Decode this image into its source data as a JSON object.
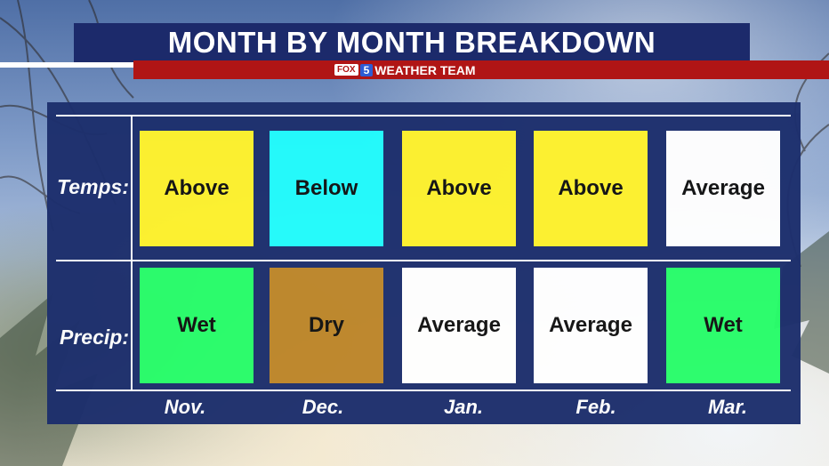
{
  "title": "MONTH BY MONTH BREAKDOWN",
  "brand": {
    "fox": "FOX",
    "five": "5",
    "weather": "WEATHER",
    "team": "TEAM"
  },
  "rows": [
    {
      "label": "Temps:",
      "cells": [
        {
          "text": "Above",
          "color": "#fff22c"
        },
        {
          "text": "Below",
          "color": "#22fcfc"
        },
        {
          "text": "Above",
          "color": "#fff22c"
        },
        {
          "text": "Above",
          "color": "#fff22c"
        },
        {
          "text": "Average",
          "color": "#ffffff"
        }
      ]
    },
    {
      "label": "Precip:",
      "cells": [
        {
          "text": "Wet",
          "color": "#28fd6a"
        },
        {
          "text": "Dry",
          "color": "#bd862a"
        },
        {
          "text": "Average",
          "color": "#ffffff"
        },
        {
          "text": "Average",
          "color": "#ffffff"
        },
        {
          "text": "Wet",
          "color": "#28fd6a"
        }
      ]
    }
  ],
  "months": [
    "Nov.",
    "Dec.",
    "Jan.",
    "Feb.",
    "Mar."
  ]
}
